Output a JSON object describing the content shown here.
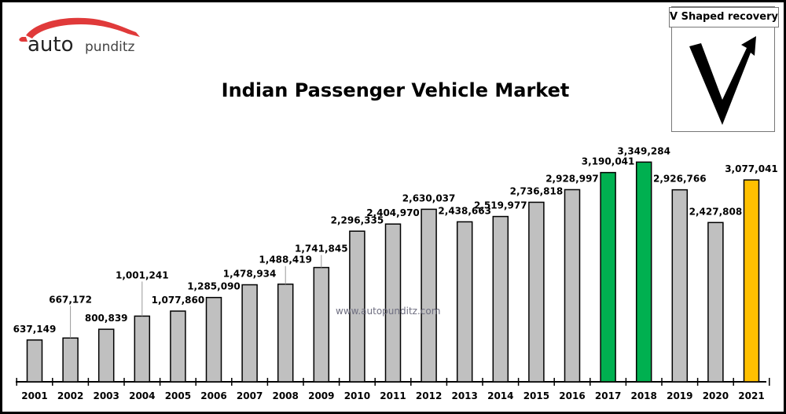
{
  "logo": {
    "text_auto": "auto",
    "text_punditz": "punditz",
    "brand_color": "#e03a3a"
  },
  "inset": {
    "label": "V Shaped recovery"
  },
  "watermark": "www.autopunditz.com",
  "chart_data": {
    "type": "bar",
    "title": "Indian Passenger Vehicle Market",
    "xlabel": "",
    "ylabel": "",
    "ylim": [
      0,
      4000000
    ],
    "grid": false,
    "categories": [
      "2001",
      "2002",
      "2003",
      "2004",
      "2005",
      "2006",
      "2007",
      "2008",
      "2009",
      "2010",
      "2011",
      "2012",
      "2013",
      "2014",
      "2015",
      "2016",
      "2017",
      "2018",
      "2019",
      "2020",
      "2021"
    ],
    "values": [
      637149,
      667172,
      800839,
      1001241,
      1077860,
      1285090,
      1478934,
      1488419,
      1741845,
      2296335,
      2404970,
      2630037,
      2438663,
      2519977,
      2736818,
      2928997,
      3190041,
      3349284,
      2926766,
      2427808,
      3077041
    ],
    "data_labels": [
      "637,149",
      "667,172",
      "800,839",
      "1,001,241",
      "1,077,860",
      "1,285,090",
      "1,478,934",
      "1,488,419",
      "1,741,845",
      "2,296,335",
      "2,404,970",
      "2,630,037",
      "2,438,663",
      "2,519,977",
      "2,736,818",
      "2,928,997",
      "3,190,041",
      "3,349,284",
      "2,926,766",
      "2,427,808",
      "3,077,041"
    ],
    "colors": {
      "default": "#c0c0c0",
      "2017": "#00b050",
      "2018": "#00b050",
      "2021": "#ffc000"
    }
  }
}
